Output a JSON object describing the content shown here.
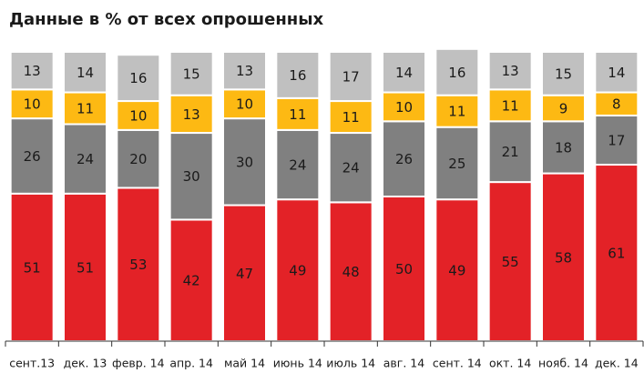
{
  "chart_data": {
    "type": "stacked_bar",
    "title": "Данные в % от всех опрошенных",
    "categories": [
      "сент.13",
      "дек. 13",
      "февр. 14",
      "апр. 14",
      "май 14",
      "июнь 14",
      "июль 14",
      "авг. 14",
      "сент. 14",
      "окт. 14",
      "нояб. 14",
      "дек. 14"
    ],
    "series": [
      {
        "color": "#e32227",
        "values": [
          51,
          51,
          53,
          42,
          47,
          49,
          48,
          50,
          49,
          55,
          58,
          61
        ]
      },
      {
        "color": "#808080",
        "values": [
          26,
          24,
          20,
          30,
          30,
          24,
          24,
          26,
          25,
          21,
          18,
          17
        ]
      },
      {
        "color": "#fdb913",
        "values": [
          10,
          11,
          10,
          13,
          10,
          11,
          11,
          10,
          11,
          11,
          9,
          8
        ]
      },
      {
        "color": "#c0c0c0",
        "values": [
          13,
          14,
          16,
          15,
          13,
          16,
          17,
          14,
          16,
          13,
          15,
          14
        ]
      }
    ],
    "ylim": [
      0,
      100
    ]
  }
}
